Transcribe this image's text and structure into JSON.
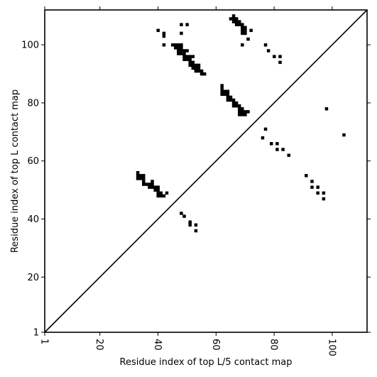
{
  "chart_data": {
    "type": "scatter",
    "title": "",
    "xlabel": "Residue index of top L/5 contact map",
    "ylabel": "Residue index of top L contact map",
    "xlim": [
      1,
      112
    ],
    "ylim": [
      1,
      112
    ],
    "x_ticks": [
      "1",
      "20",
      "40",
      "60",
      "80",
      "100"
    ],
    "y_ticks": [
      "1",
      "20",
      "40",
      "60",
      "80",
      "100"
    ],
    "x_tick_values": [
      1,
      20,
      40,
      60,
      80,
      100
    ],
    "y_tick_values": [
      1,
      20,
      40,
      60,
      80,
      100
    ],
    "diagonal": true,
    "grid": false,
    "marker": "square",
    "color": "#000000",
    "series": [
      {
        "points": [
          [
            40,
            105
          ],
          [
            42,
            104
          ],
          [
            42,
            103
          ],
          [
            42,
            100
          ],
          [
            48,
            107
          ],
          [
            50,
            107
          ],
          [
            48,
            104
          ],
          [
            45,
            100
          ],
          [
            46,
            100
          ],
          [
            47,
            100
          ],
          [
            48,
            100
          ],
          [
            46,
            99
          ],
          [
            47,
            99
          ],
          [
            48,
            99
          ],
          [
            47,
            98
          ],
          [
            48,
            98
          ],
          [
            49,
            98
          ],
          [
            50,
            98
          ],
          [
            47,
            97
          ],
          [
            48,
            97
          ],
          [
            49,
            97
          ],
          [
            49,
            96
          ],
          [
            50,
            96
          ],
          [
            51,
            96
          ],
          [
            52,
            96
          ],
          [
            49,
            95
          ],
          [
            50,
            95
          ],
          [
            51,
            95
          ],
          [
            51,
            94
          ],
          [
            52,
            94
          ],
          [
            51,
            93
          ],
          [
            52,
            93
          ],
          [
            53,
            93
          ],
          [
            54,
            93
          ],
          [
            52,
            92
          ],
          [
            53,
            92
          ],
          [
            54,
            92
          ],
          [
            53,
            91
          ],
          [
            54,
            91
          ],
          [
            55,
            91
          ],
          [
            55,
            90
          ],
          [
            56,
            90
          ],
          [
            66,
            110
          ],
          [
            65,
            109
          ],
          [
            66,
            109
          ],
          [
            67,
            109
          ],
          [
            66,
            108
          ],
          [
            67,
            108
          ],
          [
            68,
            108
          ],
          [
            67,
            107
          ],
          [
            68,
            107
          ],
          [
            69,
            107
          ],
          [
            69,
            106
          ],
          [
            70,
            106
          ],
          [
            69,
            105
          ],
          [
            70,
            105
          ],
          [
            69,
            104
          ],
          [
            70,
            104
          ],
          [
            72,
            105
          ],
          [
            71,
            102
          ],
          [
            69,
            100
          ],
          [
            77,
            100
          ],
          [
            78,
            98
          ],
          [
            80,
            96
          ],
          [
            82,
            96
          ],
          [
            82,
            94
          ],
          [
            62,
            86
          ],
          [
            62,
            85
          ],
          [
            62,
            84
          ],
          [
            63,
            84
          ],
          [
            64,
            84
          ],
          [
            62,
            83
          ],
          [
            63,
            83
          ],
          [
            64,
            83
          ],
          [
            64,
            82
          ],
          [
            65,
            82
          ],
          [
            64,
            81
          ],
          [
            65,
            81
          ],
          [
            66,
            81
          ],
          [
            66,
            80
          ],
          [
            67,
            80
          ],
          [
            66,
            79
          ],
          [
            67,
            79
          ],
          [
            68,
            79
          ],
          [
            68,
            78
          ],
          [
            69,
            78
          ],
          [
            68,
            77
          ],
          [
            69,
            77
          ],
          [
            70,
            77
          ],
          [
            71,
            77
          ],
          [
            68,
            76
          ],
          [
            69,
            76
          ],
          [
            70,
            76
          ],
          [
            98,
            78
          ],
          [
            77,
            71
          ],
          [
            76,
            68
          ],
          [
            79,
            66
          ],
          [
            81,
            66
          ],
          [
            81,
            64
          ],
          [
            83,
            64
          ],
          [
            85,
            62
          ],
          [
            104,
            69
          ],
          [
            91,
            55
          ],
          [
            93,
            53
          ],
          [
            93,
            51
          ],
          [
            95,
            51
          ],
          [
            95,
            49
          ],
          [
            97,
            49
          ],
          [
            97,
            47
          ],
          [
            33,
            56
          ],
          [
            33,
            55
          ],
          [
            34,
            55
          ],
          [
            35,
            55
          ],
          [
            33,
            54
          ],
          [
            34,
            54
          ],
          [
            35,
            54
          ],
          [
            35,
            53
          ],
          [
            35,
            52
          ],
          [
            36,
            52
          ],
          [
            37,
            52
          ],
          [
            38,
            53
          ],
          [
            38,
            52
          ],
          [
            37,
            51
          ],
          [
            38,
            51
          ],
          [
            39,
            51
          ],
          [
            40,
            51
          ],
          [
            39,
            50
          ],
          [
            40,
            50
          ],
          [
            40,
            49
          ],
          [
            41,
            49
          ],
          [
            43,
            49
          ],
          [
            40,
            48
          ],
          [
            41,
            48
          ],
          [
            42,
            48
          ],
          [
            48,
            42
          ],
          [
            49,
            41
          ],
          [
            51,
            39
          ],
          [
            51,
            38
          ],
          [
            53,
            38
          ],
          [
            53,
            36
          ]
        ]
      }
    ]
  }
}
